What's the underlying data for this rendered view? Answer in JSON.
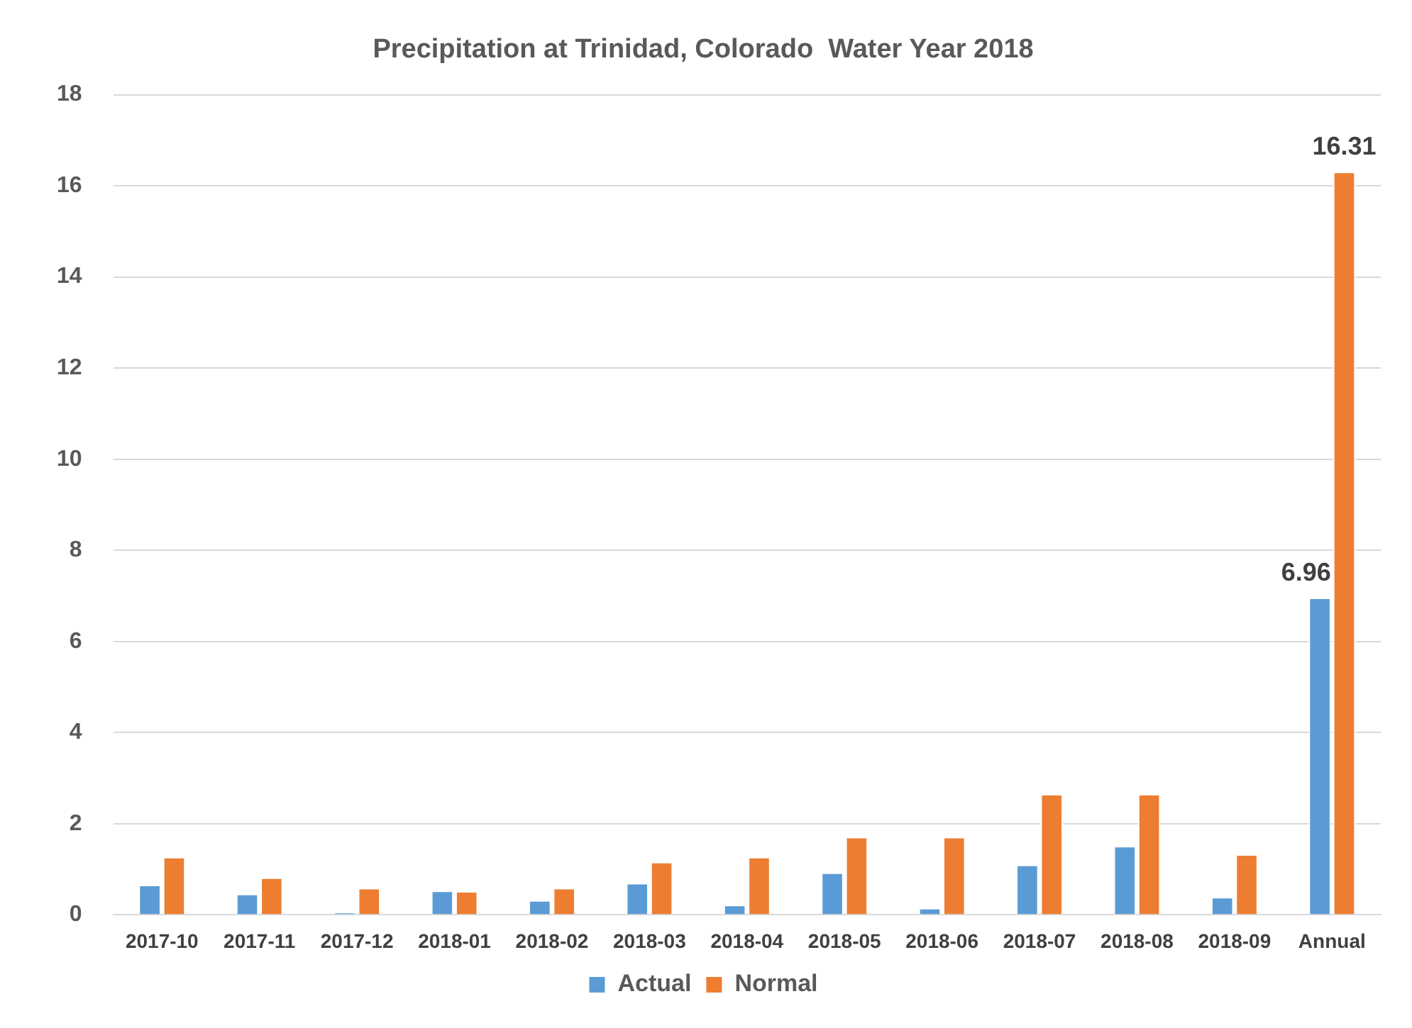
{
  "chart_data": {
    "type": "bar",
    "title": "Precipitation at Trinidad, Colorado  Water Year 2018",
    "categories": [
      "2017-10",
      "2017-11",
      "2017-12",
      "2018-01",
      "2018-02",
      "2018-03",
      "2018-04",
      "2018-05",
      "2018-06",
      "2018-07",
      "2018-08",
      "2018-09",
      "Annual"
    ],
    "series": [
      {
        "name": "Actual",
        "color": "#5b9bd5",
        "values": [
          0.66,
          0.46,
          0.05,
          0.53,
          0.32,
          0.7,
          0.22,
          0.93,
          0.15,
          1.1,
          1.51,
          0.39,
          6.96
        ],
        "value_labels": [
          null,
          null,
          null,
          null,
          null,
          null,
          null,
          null,
          null,
          null,
          null,
          null,
          "6.96"
        ]
      },
      {
        "name": "Normal",
        "color": "#ed7d31",
        "values": [
          1.27,
          0.82,
          0.59,
          0.52,
          0.59,
          1.16,
          1.27,
          1.71,
          1.71,
          2.65,
          2.65,
          1.33,
          16.31
        ],
        "value_labels": [
          null,
          null,
          null,
          null,
          null,
          null,
          null,
          null,
          null,
          null,
          null,
          null,
          "16.31"
        ]
      }
    ],
    "ylim": [
      0,
      18
    ],
    "yticks": [
      0,
      2,
      4,
      6,
      8,
      10,
      12,
      14,
      16,
      18
    ],
    "grid": "y",
    "legend": "bottom"
  }
}
